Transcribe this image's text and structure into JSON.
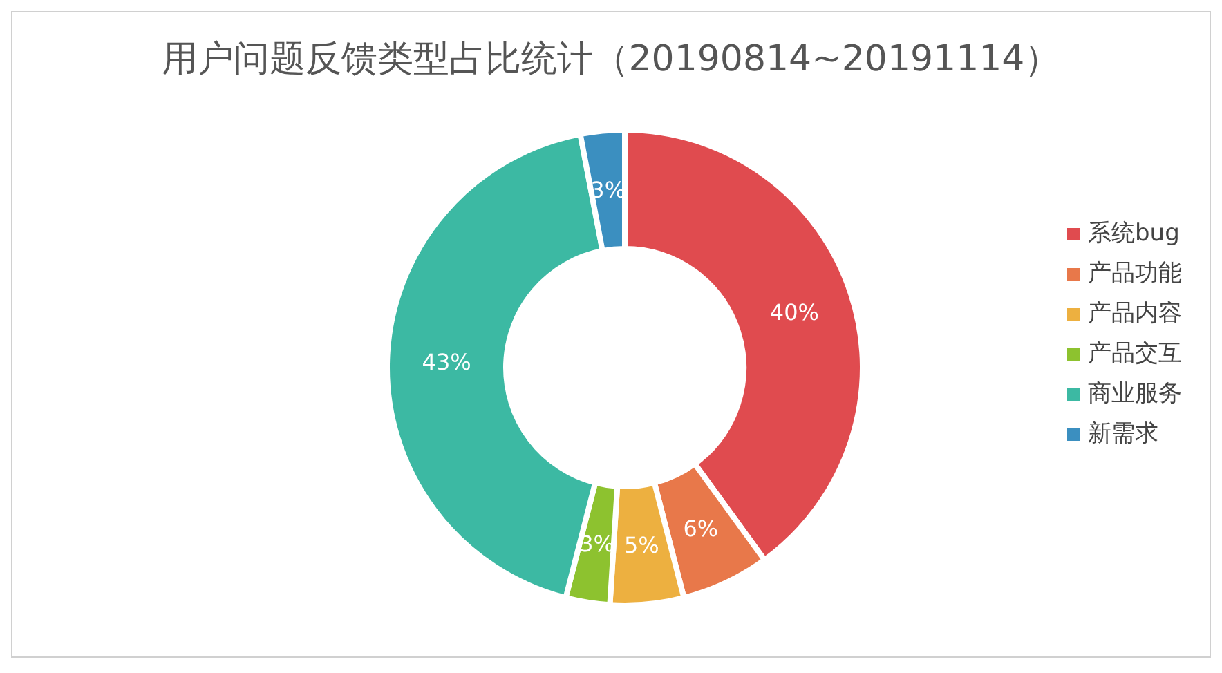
{
  "chart_data": {
    "type": "donut",
    "title": "用户问题反馈类型占比统计（20190814~20191114）",
    "categories": [
      "系统bug",
      "产品功能",
      "产品内容",
      "产品交互",
      "商业服务",
      "新需求"
    ],
    "values": [
      40,
      6,
      5,
      3,
      43,
      3
    ],
    "colors": [
      "#e04b4f",
      "#e8784a",
      "#edb040",
      "#8dc22f",
      "#3cb9a3",
      "#3b8fc0"
    ],
    "value_labels": [
      "40%",
      "6%",
      "5%",
      "3%",
      "43%",
      "3%"
    ],
    "legend": "right"
  }
}
